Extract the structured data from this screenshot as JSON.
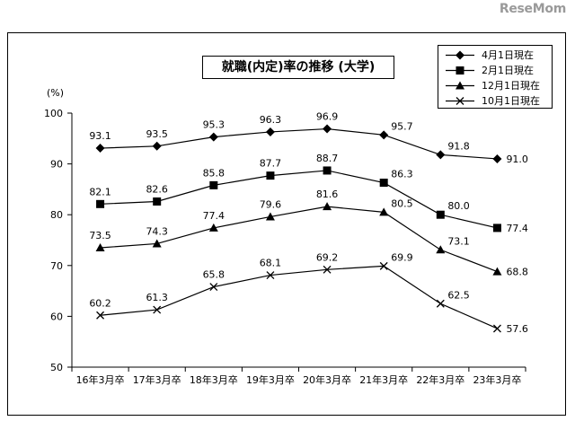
{
  "watermark": "ReseMom",
  "chart_data": {
    "type": "line",
    "title": "就職(内定)率の推移 (大学)",
    "ylabel": "(%)",
    "xlabel": "",
    "ylim": [
      50,
      100
    ],
    "yticks": [
      "50",
      "60",
      "70",
      "80",
      "90",
      "100"
    ],
    "grid": false,
    "legend_position": "top-right",
    "categories": [
      "16年3月卒",
      "17年3月卒",
      "18年3月卒",
      "19年3月卒",
      "20年3月卒",
      "21年3月卒",
      "22年3月卒",
      "23年3月卒"
    ],
    "series": [
      {
        "name": "4月1日現在",
        "marker": "diamond",
        "values": [
          93.1,
          93.5,
          95.3,
          96.3,
          96.9,
          95.7,
          91.8,
          91.0
        ],
        "labels": [
          "93.1",
          "93.5",
          "95.3",
          "96.3",
          "96.9",
          "95.7",
          "91.8",
          "91.0"
        ]
      },
      {
        "name": "2月1日現在",
        "marker": "square",
        "values": [
          82.1,
          82.6,
          85.8,
          87.7,
          88.7,
          86.3,
          80.0,
          77.4
        ],
        "labels": [
          "82.1",
          "82.6",
          "85.8",
          "87.7",
          "88.7",
          "86.3",
          "80.0",
          "77.4"
        ]
      },
      {
        "name": "12月1日現在",
        "marker": "triangle",
        "values": [
          73.5,
          74.3,
          77.4,
          79.6,
          81.6,
          80.5,
          73.1,
          68.8
        ],
        "labels": [
          "73.5",
          "74.3",
          "77.4",
          "79.6",
          "81.6",
          "80.5",
          "73.1",
          "68.8"
        ]
      },
      {
        "name": "10月1日現在",
        "marker": "x",
        "values": [
          60.2,
          61.3,
          65.8,
          68.1,
          69.2,
          69.9,
          62.5,
          57.6
        ],
        "labels": [
          "60.2",
          "61.3",
          "65.8",
          "68.1",
          "69.2",
          "69.9",
          "62.5",
          "57.6"
        ]
      }
    ]
  }
}
